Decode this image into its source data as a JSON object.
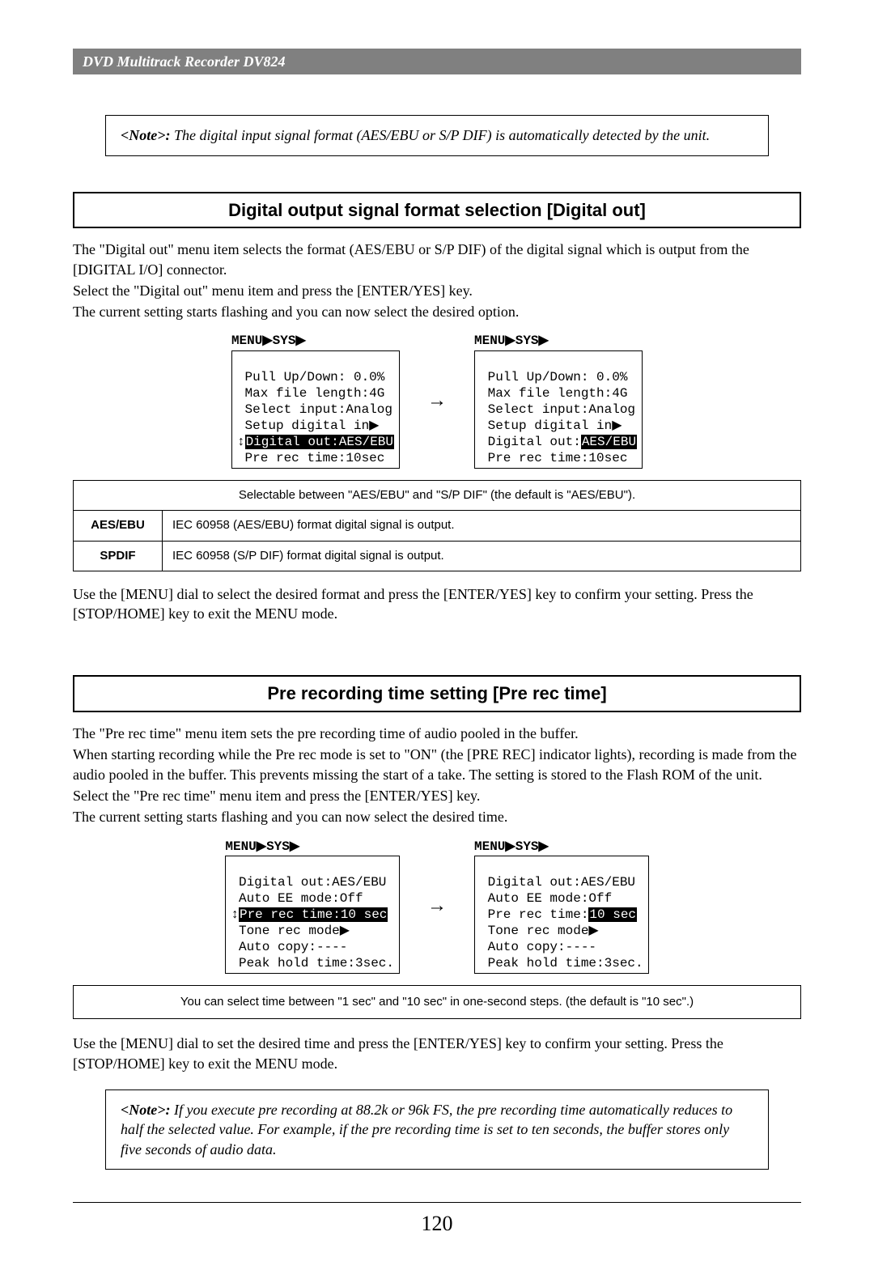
{
  "header": {
    "title": "DVD Multitrack Recorder DV824"
  },
  "note1": {
    "label": "<Note>:",
    "text": " The digital input signal format (AES/EBU or S/P DIF) is automatically detected by the unit."
  },
  "section1": {
    "title": "Digital output signal format selection [Digital out]",
    "p1": "The \"Digital out\" menu item selects the format (AES/EBU or S/P DIF) of the digital signal which is output from the [DIGITAL I/O] connector.",
    "p2": "Select the \"Digital out\" menu item and press the [ENTER/YES] key.",
    "p3": "The current setting starts flashing and you can now select the desired option.",
    "screenTitle": "MENU▶SYS▶",
    "screen1": {
      "l1": " Pull Up/Down: 0.0%",
      "l2": " Max file length:4G",
      "l3": " Select input:Analog",
      "l4": " Setup digital in▶",
      "l5a": "↕",
      "l5b": "Digital out:AES/EBU",
      "l6": " Pre rec time:10sec"
    },
    "screen2": {
      "l1": " Pull Up/Down: 0.0%",
      "l2": " Max file length:4G",
      "l3": " Select input:Analog",
      "l4": " Setup digital in▶",
      "l5a": " Digital out:",
      "l5b": "AES/EBU",
      "l6": " Pre rec time:10sec"
    },
    "table": {
      "head": "Selectable between \"AES/EBU\" and \"S/P DIF\" (the default is \"AES/EBU\").",
      "r1k": "AES/EBU",
      "r1v": "IEC 60958 (AES/EBU) format digital signal is output.",
      "r2k": "SPDIF",
      "r2v": "IEC 60958 (S/P DIF) format digital signal is output."
    },
    "p4": "Use the [MENU] dial to select the desired format and press the [ENTER/YES] key to confirm your setting. Press the [STOP/HOME] key to exit the MENU mode."
  },
  "section2": {
    "title": "Pre recording time setting [Pre rec time]",
    "p1": "The \"Pre rec time\" menu item sets the pre recording time of audio pooled in the buffer.",
    "p2": "When starting recording while the Pre rec mode is set to \"ON\" (the [PRE REC] indicator lights), recording is made from the audio pooled in the buffer. This prevents missing the start of a take. The setting is stored to the Flash ROM of the unit.",
    "p3": "Select the \"Pre rec time\" menu item and press the [ENTER/YES] key.",
    "p4": "The current setting starts flashing and you can now select the desired time.",
    "screenTitle": "MENU▶SYS▶",
    "screen1": {
      "l1": " Digital out:AES/EBU",
      "l2": " Auto EE mode:Off",
      "l3a": "↕",
      "l3b": "Pre rec time:10 sec",
      "l4": " Tone rec mode▶",
      "l5": " Auto copy:----",
      "l6": " Peak hold time:3sec."
    },
    "screen2": {
      "l1": " Digital out:AES/EBU",
      "l2": " Auto EE mode:Off",
      "l3a": " Pre rec time:",
      "l3b": "10 sec",
      "l4": " Tone rec mode▶",
      "l5": " Auto copy:----",
      "l6": " Peak hold time:3sec."
    },
    "info": "You can select time between \"1 sec\" and \"10 sec\" in one-second steps. (the default is \"10 sec\".)",
    "p5": "Use the [MENU] dial to set the desired time and press the [ENTER/YES] key to confirm your setting. Press the [STOP/HOME] key to exit the MENU mode."
  },
  "note2": {
    "label": "<Note>:",
    "text": " If you execute pre recording at 88.2k or 96k FS, the pre recording time automatically reduces to half the selected value. For example, if the pre recording time is set to ten seconds, the buffer stores only five seconds of audio data."
  },
  "pageNumber": "120",
  "arrow": "→"
}
